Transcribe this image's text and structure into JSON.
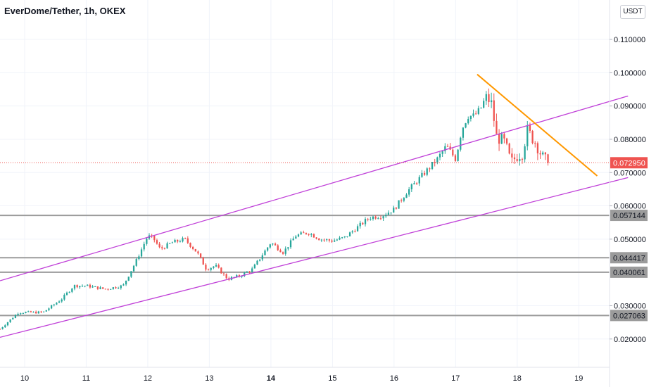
{
  "header": {
    "title": "EverDome/Tether, 1h, OKEX",
    "currency": "USDT"
  },
  "colors": {
    "up": "#26a69a",
    "down": "#ef5350",
    "channel": "#c040d8",
    "trendline": "#ff9800",
    "level": "#9b9b9b",
    "price_line": "#ef5350",
    "grid": "#f0f3fa"
  },
  "chart_data": {
    "type": "candlestick",
    "y_ticks": [
      "0.110000",
      "0.100000",
      "0.090000",
      "0.080000",
      "0.070000",
      "0.060000",
      "0.050000",
      "0.030000",
      "0.020000"
    ],
    "y_tick_values": [
      0.11,
      0.1,
      0.09,
      0.08,
      0.07,
      0.06,
      0.05,
      0.03,
      0.02
    ],
    "x_ticks": [
      "10",
      "11",
      "12",
      "13",
      "14",
      "15",
      "16",
      "17",
      "18",
      "19"
    ],
    "x_tick_values": [
      10,
      11,
      12,
      13,
      14,
      15,
      16,
      17,
      18,
      19
    ],
    "bold_x_tick": "14",
    "xlim": [
      9.6,
      19.5
    ],
    "ylim": [
      0.0115,
      0.1155
    ],
    "last_price": "0.072950",
    "last_price_value": 0.07295,
    "levels": [
      {
        "label": "0.057144",
        "value": 0.057144
      },
      {
        "label": "0.044417",
        "value": 0.044417
      },
      {
        "label": "0.040061",
        "value": 0.040061
      },
      {
        "label": "0.027063",
        "value": 0.027063
      }
    ],
    "channel_lines": [
      {
        "name": "upper",
        "points": [
          [
            9.6,
            0.0375
          ],
          [
            19.8,
            0.093
          ]
        ]
      },
      {
        "name": "lower",
        "points": [
          [
            9.6,
            0.0205
          ],
          [
            19.8,
            0.0685
          ]
        ]
      }
    ],
    "trendline": {
      "points": [
        [
          17.35,
          0.0995
        ],
        [
          19.3,
          0.069
        ]
      ]
    },
    "path_x": [
      9.6,
      9.9,
      10.3,
      10.6,
      10.8,
      11.0,
      11.3,
      11.6,
      11.8,
      12.0,
      12.1,
      12.2,
      12.4,
      12.6,
      12.8,
      12.95,
      13.1,
      13.3,
      13.5,
      13.7,
      13.85,
      14.0,
      14.2,
      14.4,
      14.6,
      14.8,
      15.0,
      15.2,
      15.4,
      15.6,
      15.8,
      16.0,
      16.2,
      16.35,
      16.5,
      16.7,
      16.85,
      17.0,
      17.1,
      17.2,
      17.3,
      17.4,
      17.5,
      17.6,
      17.65,
      17.8,
      17.9,
      18.0,
      18.1,
      18.15,
      18.3,
      18.4,
      18.5
    ],
    "path_y": [
      0.023,
      0.028,
      0.028,
      0.032,
      0.036,
      0.036,
      0.035,
      0.036,
      0.043,
      0.051,
      0.05,
      0.047,
      0.049,
      0.05,
      0.046,
      0.041,
      0.042,
      0.038,
      0.039,
      0.041,
      0.045,
      0.049,
      0.046,
      0.051,
      0.052,
      0.05,
      0.0495,
      0.0505,
      0.0535,
      0.0565,
      0.057,
      0.059,
      0.064,
      0.067,
      0.07,
      0.074,
      0.078,
      0.074,
      0.083,
      0.087,
      0.087,
      0.089,
      0.093,
      0.09,
      0.081,
      0.079,
      0.073,
      0.075,
      0.076,
      0.083,
      0.079,
      0.075,
      0.0729
    ]
  }
}
